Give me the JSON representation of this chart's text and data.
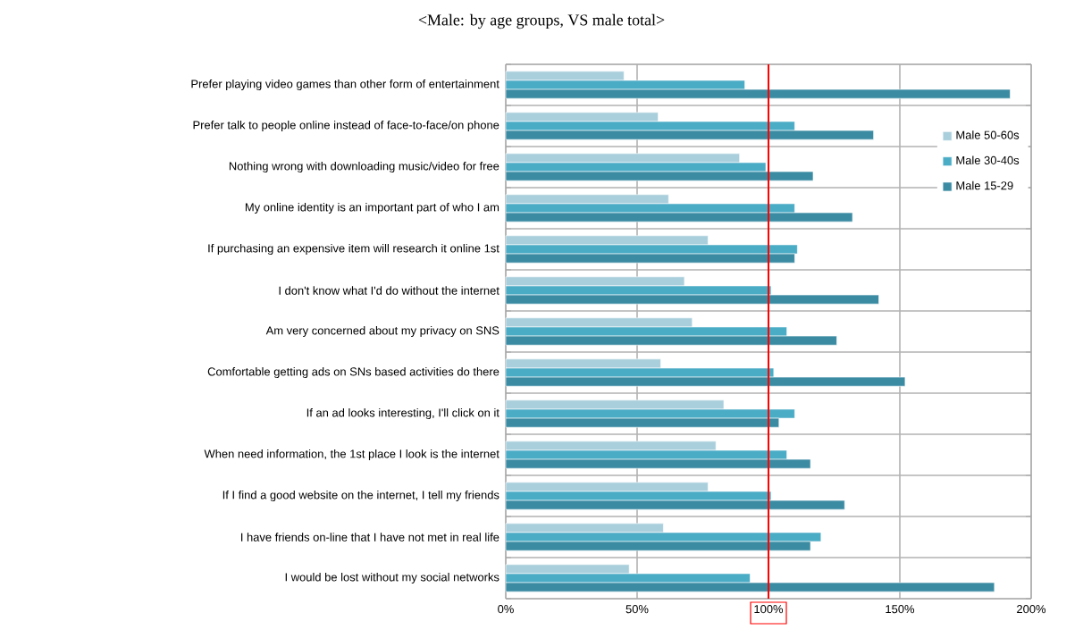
{
  "chart_data": {
    "type": "bar",
    "orientation": "horizontal",
    "title": "<Male: by age groups, VS male total>",
    "categories": [
      "Prefer playing video games than other form of entertainment",
      "Prefer talk to people online instead of face-to-face/on phone",
      "Nothing wrong with downloading music/video for free",
      "My online identity is an important part of who I am",
      "If purchasing an expensive item will research it online 1st",
      "I don't know what I'd do without the internet",
      "Am very concerned about my privacy on SNS",
      "Comfortable getting ads on SNs based activities do there",
      "If an ad looks interesting, I'll click on it",
      "When need information, the 1st place I look is the internet",
      "If I find a good website on the internet, I tell my friends",
      "I have friends on-line that I have not met in real life",
      "I would be lost without my social networks"
    ],
    "series": [
      {
        "name": "Male 50-60s",
        "color": "#a9cfdc",
        "values": [
          45,
          58,
          89,
          62,
          77,
          68,
          71,
          59,
          83,
          80,
          77,
          60,
          47
        ]
      },
      {
        "name": "Male 30-40s",
        "color": "#4bacc6",
        "values": [
          91,
          110,
          99,
          110,
          111,
          101,
          107,
          102,
          110,
          107,
          101,
          120,
          93
        ]
      },
      {
        "name": "Male 15-29",
        "color": "#3b8ba3",
        "values": [
          192,
          140,
          117,
          132,
          110,
          142,
          126,
          152,
          104,
          116,
          129,
          116,
          186
        ]
      }
    ],
    "xlim": [
      0,
      200
    ],
    "xticks": [
      {
        "value": 0,
        "label": "0%"
      },
      {
        "value": 50,
        "label": "50%"
      },
      {
        "value": 100,
        "label": "100%"
      },
      {
        "value": 150,
        "label": "150%"
      },
      {
        "value": 200,
        "label": "200%"
      }
    ],
    "ref_lines": [
      {
        "axis": "x",
        "value": 100,
        "color": "#ff0000"
      }
    ],
    "grid": true,
    "legend": "right"
  }
}
